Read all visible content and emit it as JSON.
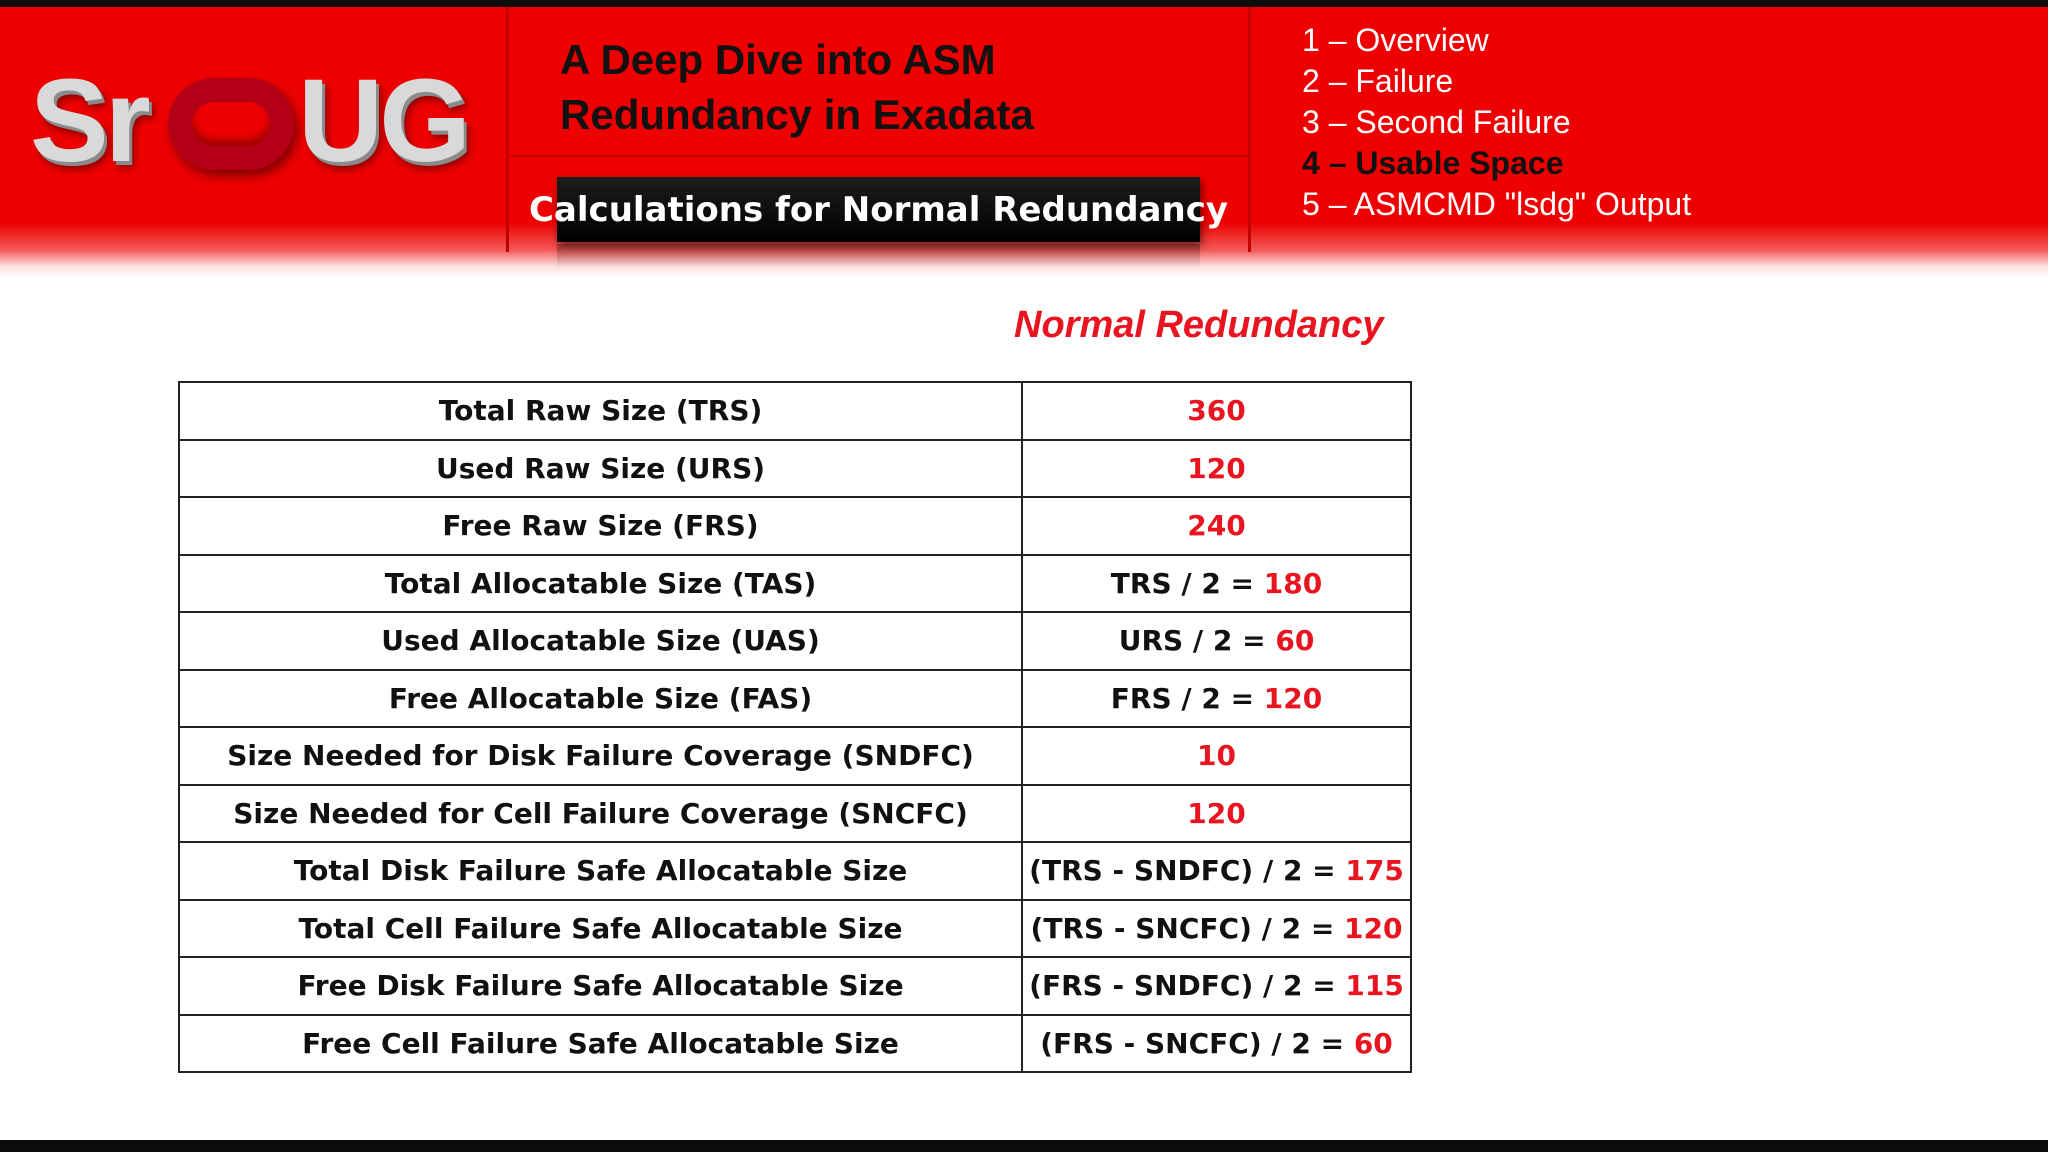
{
  "logo": {
    "text": "SrOUG"
  },
  "header": {
    "title_line1": "A Deep Dive into ASM",
    "title_line2": "Redundancy in Exadata",
    "subtitle": "Calculations for Normal Redundancy"
  },
  "agenda": [
    {
      "label": "1 – Overview",
      "active": false
    },
    {
      "label": "2 – Failure",
      "active": false
    },
    {
      "label": "3 – Second Failure",
      "active": false
    },
    {
      "label": "4 – Usable Space",
      "active": true
    },
    {
      "label": "5 – ASMCMD \"lsdg\" Output",
      "active": false
    }
  ],
  "section_title": "Normal Redundancy",
  "table": {
    "rows": [
      {
        "label": "Total Raw Size (TRS)",
        "formula": "",
        "result": "360"
      },
      {
        "label": "Used Raw Size (URS)",
        "formula": "",
        "result": "120"
      },
      {
        "label": "Free Raw Size (FRS)",
        "formula": "",
        "result": "240"
      },
      {
        "label": "Total Allocatable Size (TAS)",
        "formula": "TRS / 2 = ",
        "result": "180"
      },
      {
        "label": "Used Allocatable Size (UAS)",
        "formula": "URS / 2 = ",
        "result": "60"
      },
      {
        "label": "Free Allocatable Size (FAS)",
        "formula": "FRS / 2 = ",
        "result": "120"
      },
      {
        "label": "Size Needed for Disk Failure Coverage (SNDFC)",
        "formula": "",
        "result": "10"
      },
      {
        "label": "Size Needed for Cell Failure Coverage (SNCFC)",
        "formula": "",
        "result": "120"
      },
      {
        "label": "Total Disk Failure Safe Allocatable Size",
        "formula": "(TRS - SNDFC) / 2 = ",
        "result": "175"
      },
      {
        "label": "Total Cell Failure Safe Allocatable Size",
        "formula": "(TRS - SNCFC) / 2 = ",
        "result": "120"
      },
      {
        "label": "Free Disk Failure Safe Allocatable Size",
        "formula": "(FRS - SNDFC) / 2 = ",
        "result": "115"
      },
      {
        "label": "Free Cell Failure Safe Allocatable Size",
        "formula": "(FRS - SNCFC) / 2 = ",
        "result": "60"
      }
    ]
  },
  "colors": {
    "header_red": "#ee0000",
    "accent_red": "#e8141f",
    "subtitle_bg": "#000000",
    "logo_gray": "#d9d9d9",
    "logo_ring": "#b30016"
  }
}
